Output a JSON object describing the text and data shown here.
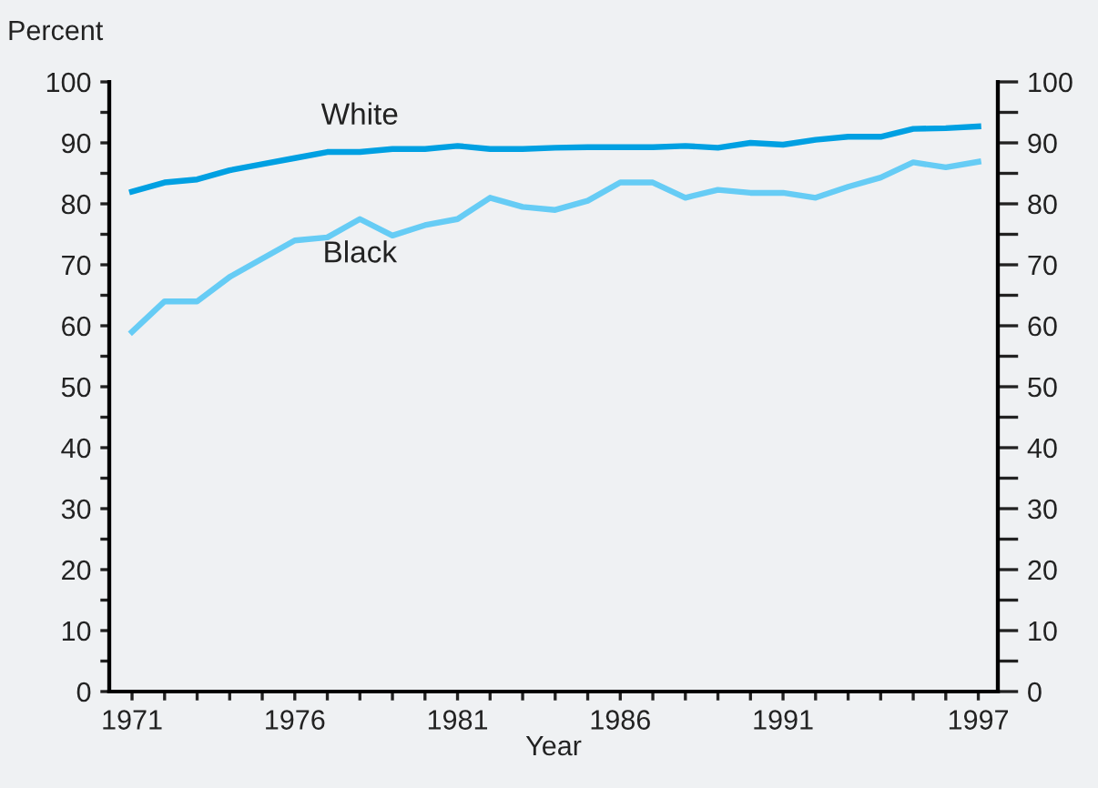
{
  "chart_data": {
    "type": "line",
    "ylabel": "Percent",
    "xlabel": "Year",
    "x": [
      1971,
      1972,
      1973,
      1974,
      1975,
      1976,
      1977,
      1978,
      1979,
      1980,
      1981,
      1982,
      1983,
      1984,
      1985,
      1986,
      1987,
      1988,
      1989,
      1990,
      1991,
      1992,
      1993,
      1994,
      1995,
      1996,
      1997
    ],
    "series": [
      {
        "name": "White",
        "color": "#00a0e2",
        "values": [
          82,
          83.5,
          84,
          85.5,
          86.5,
          87.5,
          88.5,
          88.5,
          89,
          89,
          89.5,
          89,
          89,
          89.2,
          89.3,
          89.3,
          89.3,
          89.5,
          89.2,
          90,
          89.7,
          90.5,
          91,
          91,
          92.3,
          92.4,
          92.7
        ]
      },
      {
        "name": "Black",
        "color": "#66ccf5",
        "values": [
          59,
          64,
          64,
          68,
          71,
          74,
          74.5,
          77.5,
          74.8,
          76.5,
          77.5,
          81,
          79.5,
          79,
          80.5,
          83.5,
          83.5,
          81,
          82.3,
          81.8,
          81.8,
          81,
          82.8,
          84.3,
          86.8,
          86,
          86.9
        ]
      }
    ],
    "xlim": [
      1970.3,
      1997.6
    ],
    "xticks": [
      1971,
      {
        "value": 1972,
        "label": null
      },
      {
        "value": 1973,
        "label": null
      },
      {
        "value": 1974,
        "label": null
      },
      {
        "value": 1975,
        "label": null
      },
      1976,
      {
        "value": 1977,
        "label": null
      },
      {
        "value": 1978,
        "label": null
      },
      {
        "value": 1979,
        "label": null
      },
      {
        "value": 1980,
        "label": null
      },
      1981,
      {
        "value": 1982,
        "label": null
      },
      {
        "value": 1983,
        "label": null
      },
      {
        "value": 1984,
        "label": null
      },
      {
        "value": 1985,
        "label": null
      },
      1986,
      {
        "value": 1987,
        "label": null
      },
      {
        "value": 1988,
        "label": null
      },
      {
        "value": 1989,
        "label": null
      },
      {
        "value": 1990,
        "label": null
      },
      1991,
      {
        "value": 1992,
        "label": null
      },
      {
        "value": 1993,
        "label": null
      },
      {
        "value": 1994,
        "label": null
      },
      {
        "value": 1995,
        "label": null
      },
      {
        "value": 1996,
        "label": null
      },
      1997
    ],
    "ylim": [
      0,
      100
    ],
    "yticks": [
      0,
      {
        "value": 5,
        "label": null
      },
      10,
      {
        "value": 15,
        "label": null
      },
      20,
      {
        "value": 25,
        "label": null
      },
      30,
      {
        "value": 35,
        "label": null
      },
      40,
      {
        "value": 45,
        "label": null
      },
      50,
      {
        "value": 55,
        "label": null
      },
      60,
      {
        "value": 65,
        "label": null
      },
      70,
      {
        "value": 75,
        "label": null
      },
      80,
      {
        "value": 85,
        "label": null
      },
      90,
      {
        "value": 95,
        "label": null
      },
      100
    ],
    "y2lim": [
      0,
      100
    ],
    "y2ticks": [
      0,
      {
        "value": 5,
        "label": null
      },
      10,
      {
        "value": 15,
        "label": null
      },
      20,
      {
        "value": 25,
        "label": null
      },
      30,
      {
        "value": 35,
        "label": null
      },
      40,
      {
        "value": 45,
        "label": null
      },
      50,
      {
        "value": 55,
        "label": null
      },
      60,
      {
        "value": 65,
        "label": null
      },
      70,
      {
        "value": 75,
        "label": null
      },
      80,
      {
        "value": 85,
        "label": null
      },
      90,
      {
        "value": 95,
        "label": null
      },
      100
    ],
    "grid": false,
    "legend": false,
    "marker": "none",
    "line_style": "solid"
  }
}
